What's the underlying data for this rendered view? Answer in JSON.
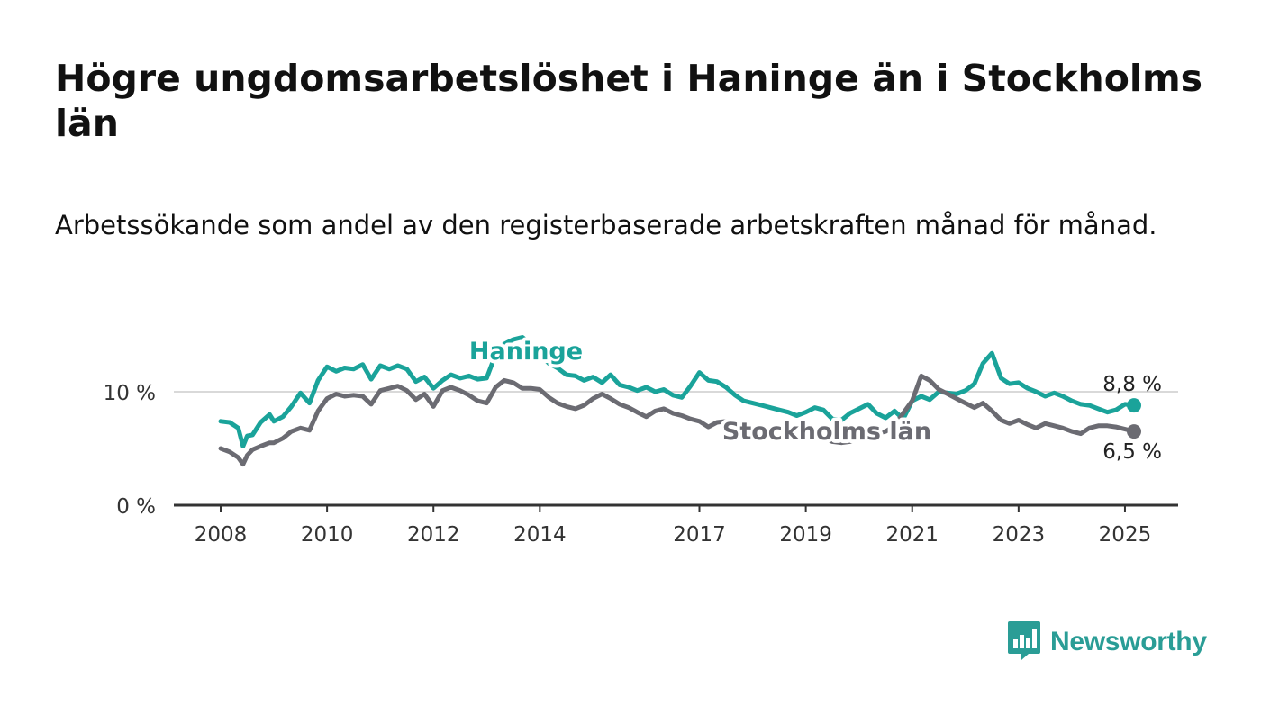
{
  "title": "Högre ungdomsarbetslöshet i Haninge än i Stockholms län",
  "subtitle": "Arbetssökande som andel av den registerbaserade arbetskraften månad för månad.",
  "brand": {
    "name": "Newsworthy",
    "icon": "newsworthy-bar-chart-bubble-icon",
    "color": "#2a9d96"
  },
  "chart_data": {
    "type": "line",
    "xlim": [
      2008.0,
      2025.5
    ],
    "ylim": [
      0,
      14.5
    ],
    "x_ticks": [
      {
        "value": 2008,
        "label": "2008"
      },
      {
        "value": 2010,
        "label": "2010"
      },
      {
        "value": 2012,
        "label": "2012"
      },
      {
        "value": 2014,
        "label": "2014"
      },
      {
        "value": 2017,
        "label": "2017"
      },
      {
        "value": 2019,
        "label": "2019"
      },
      {
        "value": 2021,
        "label": "2021"
      },
      {
        "value": 2023,
        "label": "2023"
      },
      {
        "value": 2025,
        "label": "2025"
      }
    ],
    "y_ticks": [
      {
        "value": 0,
        "label": "0 %",
        "grid": false
      },
      {
        "value": 10,
        "label": "10 %",
        "grid": true
      }
    ],
    "series": [
      {
        "name": "Haninge",
        "color": "#1aa39a",
        "end_label": "8,8 %",
        "points": [
          [
            2008.0,
            7.4
          ],
          [
            2008.17,
            7.3
          ],
          [
            2008.33,
            6.8
          ],
          [
            2008.42,
            5.2
          ],
          [
            2008.5,
            6.1
          ],
          [
            2008.6,
            6.2
          ],
          [
            2008.75,
            7.3
          ],
          [
            2008.92,
            8.0
          ],
          [
            2009.0,
            7.4
          ],
          [
            2009.17,
            7.8
          ],
          [
            2009.33,
            8.7
          ],
          [
            2009.5,
            9.9
          ],
          [
            2009.67,
            9.0
          ],
          [
            2009.83,
            11.0
          ],
          [
            2010.0,
            12.2
          ],
          [
            2010.17,
            11.8
          ],
          [
            2010.33,
            12.1
          ],
          [
            2010.5,
            12.0
          ],
          [
            2010.67,
            12.4
          ],
          [
            2010.83,
            11.1
          ],
          [
            2011.0,
            12.3
          ],
          [
            2011.17,
            12.0
          ],
          [
            2011.33,
            12.3
          ],
          [
            2011.5,
            12.0
          ],
          [
            2011.67,
            10.9
          ],
          [
            2011.83,
            11.3
          ],
          [
            2012.0,
            10.3
          ],
          [
            2012.17,
            11.0
          ],
          [
            2012.33,
            11.5
          ],
          [
            2012.5,
            11.2
          ],
          [
            2012.67,
            11.4
          ],
          [
            2012.83,
            11.1
          ],
          [
            2013.0,
            11.2
          ],
          [
            2013.17,
            13.3
          ],
          [
            2013.33,
            14.2
          ],
          [
            2013.5,
            14.6
          ],
          [
            2013.67,
            14.8
          ],
          [
            2013.83,
            14.2
          ],
          [
            2014.0,
            13.3
          ],
          [
            2014.17,
            12.5
          ],
          [
            2014.33,
            12.1
          ],
          [
            2014.5,
            11.5
          ],
          [
            2014.67,
            11.4
          ],
          [
            2014.83,
            11.0
          ],
          [
            2015.0,
            11.3
          ],
          [
            2015.17,
            10.8
          ],
          [
            2015.33,
            11.5
          ],
          [
            2015.5,
            10.6
          ],
          [
            2015.67,
            10.4
          ],
          [
            2015.83,
            10.1
          ],
          [
            2016.0,
            10.4
          ],
          [
            2016.17,
            10.0
          ],
          [
            2016.33,
            10.2
          ],
          [
            2016.5,
            9.7
          ],
          [
            2016.67,
            9.5
          ],
          [
            2016.83,
            10.5
          ],
          [
            2017.0,
            11.7
          ],
          [
            2017.17,
            11.0
          ],
          [
            2017.33,
            10.9
          ],
          [
            2017.5,
            10.4
          ],
          [
            2017.67,
            9.7
          ],
          [
            2017.83,
            9.2
          ],
          [
            2018.0,
            9.0
          ],
          [
            2018.17,
            8.8
          ],
          [
            2018.33,
            8.6
          ],
          [
            2018.5,
            8.4
          ],
          [
            2018.67,
            8.2
          ],
          [
            2018.83,
            7.9
          ],
          [
            2019.0,
            8.2
          ],
          [
            2019.17,
            8.6
          ],
          [
            2019.33,
            8.4
          ],
          [
            2019.5,
            7.6
          ],
          [
            2019.67,
            7.5
          ],
          [
            2019.83,
            8.1
          ],
          [
            2020.0,
            8.5
          ],
          [
            2020.17,
            8.9
          ],
          [
            2020.33,
            8.1
          ],
          [
            2020.5,
            7.7
          ],
          [
            2020.67,
            8.3
          ],
          [
            2020.83,
            7.6
          ],
          [
            2021.0,
            9.2
          ],
          [
            2021.17,
            9.6
          ],
          [
            2021.33,
            9.3
          ],
          [
            2021.5,
            10.0
          ],
          [
            2021.67,
            9.9
          ],
          [
            2021.83,
            9.8
          ],
          [
            2022.0,
            10.1
          ],
          [
            2022.17,
            10.7
          ],
          [
            2022.33,
            12.5
          ],
          [
            2022.5,
            13.4
          ],
          [
            2022.67,
            11.2
          ],
          [
            2022.83,
            10.7
          ],
          [
            2023.0,
            10.8
          ],
          [
            2023.17,
            10.3
          ],
          [
            2023.33,
            10.0
          ],
          [
            2023.5,
            9.6
          ],
          [
            2023.67,
            9.9
          ],
          [
            2023.83,
            9.6
          ],
          [
            2024.0,
            9.2
          ],
          [
            2024.17,
            8.9
          ],
          [
            2024.33,
            8.8
          ],
          [
            2024.5,
            8.5
          ],
          [
            2024.67,
            8.2
          ],
          [
            2024.83,
            8.4
          ],
          [
            2025.0,
            8.9
          ],
          [
            2025.17,
            8.8
          ]
        ]
      },
      {
        "name": "Stockholms län",
        "color": "#6b6b72",
        "end_label": "6,5 %",
        "points": [
          [
            2008.0,
            5.0
          ],
          [
            2008.17,
            4.7
          ],
          [
            2008.33,
            4.2
          ],
          [
            2008.42,
            3.6
          ],
          [
            2008.5,
            4.4
          ],
          [
            2008.6,
            4.9
          ],
          [
            2008.75,
            5.2
          ],
          [
            2008.92,
            5.5
          ],
          [
            2009.0,
            5.5
          ],
          [
            2009.17,
            5.9
          ],
          [
            2009.33,
            6.5
          ],
          [
            2009.5,
            6.8
          ],
          [
            2009.67,
            6.6
          ],
          [
            2009.83,
            8.3
          ],
          [
            2010.0,
            9.4
          ],
          [
            2010.17,
            9.8
          ],
          [
            2010.33,
            9.6
          ],
          [
            2010.5,
            9.7
          ],
          [
            2010.67,
            9.6
          ],
          [
            2010.83,
            8.9
          ],
          [
            2011.0,
            10.1
          ],
          [
            2011.17,
            10.3
          ],
          [
            2011.33,
            10.5
          ],
          [
            2011.5,
            10.1
          ],
          [
            2011.67,
            9.3
          ],
          [
            2011.83,
            9.8
          ],
          [
            2012.0,
            8.7
          ],
          [
            2012.17,
            10.1
          ],
          [
            2012.33,
            10.4
          ],
          [
            2012.5,
            10.1
          ],
          [
            2012.67,
            9.7
          ],
          [
            2012.83,
            9.2
          ],
          [
            2013.0,
            9.0
          ],
          [
            2013.17,
            10.4
          ],
          [
            2013.33,
            11.0
          ],
          [
            2013.5,
            10.8
          ],
          [
            2013.67,
            10.3
          ],
          [
            2013.83,
            10.3
          ],
          [
            2014.0,
            10.2
          ],
          [
            2014.17,
            9.5
          ],
          [
            2014.33,
            9.0
          ],
          [
            2014.5,
            8.7
          ],
          [
            2014.67,
            8.5
          ],
          [
            2014.83,
            8.8
          ],
          [
            2015.0,
            9.4
          ],
          [
            2015.17,
            9.8
          ],
          [
            2015.33,
            9.4
          ],
          [
            2015.5,
            8.9
          ],
          [
            2015.67,
            8.6
          ],
          [
            2015.83,
            8.2
          ],
          [
            2016.0,
            7.8
          ],
          [
            2016.17,
            8.3
          ],
          [
            2016.33,
            8.5
          ],
          [
            2016.5,
            8.1
          ],
          [
            2016.67,
            7.9
          ],
          [
            2016.83,
            7.6
          ],
          [
            2017.0,
            7.4
          ],
          [
            2017.17,
            6.9
          ],
          [
            2017.33,
            7.3
          ],
          [
            2017.5,
            7.4
          ],
          [
            2017.67,
            7.0
          ],
          [
            2017.83,
            6.7
          ],
          [
            2018.0,
            6.5
          ],
          [
            2018.17,
            6.3
          ],
          [
            2018.33,
            6.1
          ],
          [
            2018.5,
            6.0
          ],
          [
            2018.67,
            5.9
          ],
          [
            2018.83,
            5.8
          ],
          [
            2019.0,
            5.9
          ],
          [
            2019.17,
            6.0
          ],
          [
            2019.33,
            5.9
          ],
          [
            2019.5,
            5.6
          ],
          [
            2019.67,
            5.5
          ],
          [
            2019.83,
            5.6
          ],
          [
            2020.0,
            5.9
          ],
          [
            2020.17,
            6.2
          ],
          [
            2020.33,
            6.3
          ],
          [
            2020.5,
            6.5
          ],
          [
            2020.67,
            7.0
          ],
          [
            2020.83,
            8.1
          ],
          [
            2021.0,
            9.2
          ],
          [
            2021.17,
            11.4
          ],
          [
            2021.33,
            11.0
          ],
          [
            2021.5,
            10.2
          ],
          [
            2021.67,
            9.8
          ],
          [
            2021.83,
            9.4
          ],
          [
            2022.0,
            9.0
          ],
          [
            2022.17,
            8.6
          ],
          [
            2022.33,
            9.0
          ],
          [
            2022.5,
            8.3
          ],
          [
            2022.67,
            7.5
          ],
          [
            2022.83,
            7.2
          ],
          [
            2023.0,
            7.5
          ],
          [
            2023.17,
            7.1
          ],
          [
            2023.33,
            6.8
          ],
          [
            2023.5,
            7.2
          ],
          [
            2023.67,
            7.0
          ],
          [
            2023.83,
            6.8
          ],
          [
            2024.0,
            6.5
          ],
          [
            2024.17,
            6.3
          ],
          [
            2024.33,
            6.8
          ],
          [
            2024.5,
            7.0
          ],
          [
            2024.67,
            7.0
          ],
          [
            2024.83,
            6.9
          ],
          [
            2025.0,
            6.7
          ],
          [
            2025.17,
            6.5
          ]
        ]
      }
    ],
    "legend": "inline labels on lines",
    "grid": "horizontal at 10 %",
    "xlabel": "",
    "ylabel": ""
  }
}
